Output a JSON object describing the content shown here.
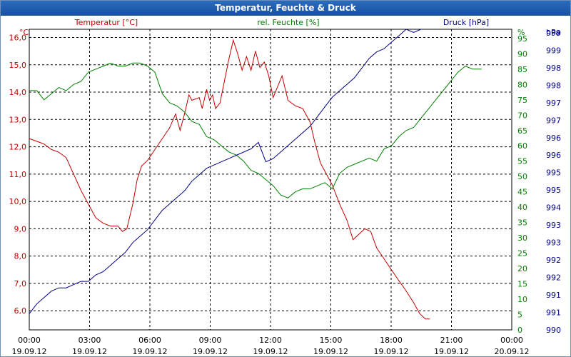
{
  "window": {
    "title": "Temperatur, Feuchte & Druck"
  },
  "chart_data": {
    "type": "line",
    "title": "Temperatur, Feuchte & Druck",
    "grid": true,
    "x": {
      "start": "19.09.12 00:00",
      "end": "20.09.12 00:00",
      "tick_labels": [
        {
          "time": "00:00",
          "date": "19.09.12"
        },
        {
          "time": "03:00",
          "date": "19.09.12"
        },
        {
          "time": "06:00",
          "date": "19.09.12"
        },
        {
          "time": "09:00",
          "date": "19.09.12"
        },
        {
          "time": "12:00",
          "date": "19.09.12"
        },
        {
          "time": "15:00",
          "date": "19.09.12"
        },
        {
          "time": "18:00",
          "date": "19.09.12"
        },
        {
          "time": "21:00",
          "date": "19.09.12"
        },
        {
          "time": "00:00",
          "date": "20.09.12"
        }
      ]
    },
    "axes": {
      "temperature": {
        "label": "Temperatur [°C]",
        "unit": "°C",
        "color": "#c00000",
        "side": "left",
        "range": [
          5.3,
          16.3
        ],
        "ticks": [
          "6,0",
          "7,0",
          "8,0",
          "9,0",
          "10,0",
          "11,0",
          "12,0",
          "13,0",
          "14,0",
          "15,0",
          "16,0"
        ]
      },
      "humidity": {
        "label": "rel. Feuchte [%]",
        "unit": "%",
        "color": "#008000",
        "side": "right",
        "range": [
          0,
          98
        ],
        "ticks": [
          "0",
          "5",
          "10",
          "15",
          "20",
          "25",
          "30",
          "35",
          "40",
          "45",
          "50",
          "55",
          "60",
          "65",
          "70",
          "75",
          "80",
          "85",
          "90",
          "95"
        ]
      },
      "pressure": {
        "label": "Druck [hPa]",
        "unit": "hPa",
        "color": "#00008b",
        "side": "right",
        "range": [
          990,
          999.3
        ],
        "ticks": [
          "990",
          "991",
          "991",
          "992",
          "992",
          "993",
          "993",
          "994",
          "995",
          "995",
          "996",
          "996",
          "997",
          "997",
          "998",
          "998",
          "999",
          "999"
        ]
      }
    },
    "series": [
      {
        "name": "Temperatur [°C]",
        "axis": "temperature",
        "color": "#c00000",
        "points": [
          [
            0,
            12.3
          ],
          [
            0.5,
            12.2
          ],
          [
            1,
            12.1
          ],
          [
            1.5,
            11.9
          ],
          [
            2,
            11.8
          ],
          [
            2.5,
            11.6
          ],
          [
            3,
            11.0
          ],
          [
            3.5,
            10.4
          ],
          [
            4,
            9.9
          ],
          [
            4.5,
            9.4
          ],
          [
            5,
            9.2
          ],
          [
            5.5,
            9.1
          ],
          [
            6,
            9.1
          ],
          [
            6.3,
            8.9
          ],
          [
            6.6,
            9.0
          ],
          [
            7,
            9.9
          ],
          [
            7.3,
            10.8
          ],
          [
            7.6,
            11.3
          ],
          [
            8,
            11.5
          ],
          [
            8.5,
            11.9
          ],
          [
            9,
            12.3
          ],
          [
            9.5,
            12.7
          ],
          [
            9.9,
            13.2
          ],
          [
            10.2,
            12.6
          ],
          [
            10.5,
            13.2
          ],
          [
            10.8,
            13.9
          ],
          [
            11,
            13.7
          ],
          [
            11.5,
            13.8
          ],
          [
            11.7,
            13.4
          ],
          [
            12,
            14.1
          ],
          [
            12.2,
            13.7
          ],
          [
            12.4,
            13.9
          ],
          [
            12.6,
            13.4
          ],
          [
            12.9,
            13.6
          ],
          [
            13.2,
            14.4
          ],
          [
            13.5,
            15.2
          ],
          [
            13.8,
            15.9
          ],
          [
            14.1,
            15.4
          ],
          [
            14.4,
            14.8
          ],
          [
            14.7,
            15.3
          ],
          [
            15,
            14.8
          ],
          [
            15.3,
            15.5
          ],
          [
            15.6,
            14.9
          ],
          [
            15.9,
            15.1
          ],
          [
            16.2,
            14.6
          ],
          [
            16.5,
            13.8
          ],
          [
            16.8,
            14.2
          ],
          [
            17.1,
            14.6
          ],
          [
            17.5,
            13.7
          ],
          [
            18,
            13.5
          ],
          [
            18.5,
            13.4
          ],
          [
            19,
            12.9
          ],
          [
            19.3,
            12.2
          ],
          [
            19.7,
            11.4
          ],
          [
            20.1,
            11.0
          ],
          [
            20.5,
            10.6
          ],
          [
            21,
            9.9
          ],
          [
            21.5,
            9.3
          ],
          [
            21.9,
            8.6
          ],
          [
            22.3,
            8.8
          ],
          [
            22.7,
            9.0
          ],
          [
            23.1,
            8.9
          ],
          [
            23.5,
            8.3
          ],
          [
            24,
            7.9
          ],
          [
            24.5,
            7.5
          ],
          [
            25,
            7.1
          ],
          [
            25.4,
            6.8
          ],
          [
            26,
            6.3
          ],
          [
            26.4,
            5.9
          ],
          [
            26.8,
            5.7
          ],
          [
            27.1,
            5.7
          ]
        ]
      },
      {
        "name": "rel. Feuchte [%]",
        "axis": "humidity",
        "color": "#008000",
        "points": [
          [
            0,
            78
          ],
          [
            0.5,
            78
          ],
          [
            1,
            75
          ],
          [
            1.5,
            77
          ],
          [
            2,
            79
          ],
          [
            2.5,
            78
          ],
          [
            3,
            80
          ],
          [
            3.5,
            81
          ],
          [
            4,
            84
          ],
          [
            4.5,
            85
          ],
          [
            5,
            86
          ],
          [
            5.5,
            87
          ],
          [
            6,
            86
          ],
          [
            6.5,
            86
          ],
          [
            7,
            87
          ],
          [
            7.5,
            87
          ],
          [
            8,
            86
          ],
          [
            8.5,
            84
          ],
          [
            9,
            77
          ],
          [
            9.5,
            74
          ],
          [
            10,
            73
          ],
          [
            10.5,
            71
          ],
          [
            11,
            68
          ],
          [
            11.5,
            67
          ],
          [
            12,
            63
          ],
          [
            12.5,
            62
          ],
          [
            13,
            60
          ],
          [
            13.5,
            58
          ],
          [
            14,
            57
          ],
          [
            14.5,
            55
          ],
          [
            15,
            52
          ],
          [
            15.5,
            51
          ],
          [
            16,
            49
          ],
          [
            16.5,
            47
          ],
          [
            17,
            44
          ],
          [
            17.5,
            43
          ],
          [
            18,
            45
          ],
          [
            18.5,
            46
          ],
          [
            19,
            46
          ],
          [
            19.5,
            47
          ],
          [
            20,
            48
          ],
          [
            20.5,
            46
          ],
          [
            21,
            51
          ],
          [
            21.5,
            53
          ],
          [
            22,
            54
          ],
          [
            22.5,
            55
          ],
          [
            23,
            56
          ],
          [
            23.5,
            55
          ],
          [
            24,
            59
          ],
          [
            24.5,
            60
          ],
          [
            25,
            63
          ],
          [
            25.5,
            65
          ],
          [
            26,
            66
          ],
          [
            26.5,
            69
          ],
          [
            27,
            72
          ],
          [
            27.5,
            75
          ],
          [
            28,
            78
          ],
          [
            28.5,
            81
          ],
          [
            29,
            84
          ],
          [
            29.5,
            86
          ],
          [
            30,
            85
          ],
          [
            30.6,
            85
          ]
        ]
      },
      {
        "name": "Druck [hPa]",
        "axis": "pressure",
        "color": "#00008b",
        "points": [
          [
            0,
            990.5
          ],
          [
            0.5,
            990.8
          ],
          [
            1,
            991.0
          ],
          [
            1.5,
            991.2
          ],
          [
            2,
            991.3
          ],
          [
            2.5,
            991.3
          ],
          [
            3,
            991.4
          ],
          [
            3.5,
            991.5
          ],
          [
            4,
            991.5
          ],
          [
            4.5,
            991.7
          ],
          [
            5,
            991.8
          ],
          [
            5.5,
            992.0
          ],
          [
            6,
            992.2
          ],
          [
            6.5,
            992.4
          ],
          [
            7,
            992.7
          ],
          [
            7.5,
            992.9
          ],
          [
            8,
            993.1
          ],
          [
            8.5,
            993.4
          ],
          [
            9,
            993.7
          ],
          [
            9.5,
            993.9
          ],
          [
            10,
            994.1
          ],
          [
            10.5,
            994.3
          ],
          [
            11,
            994.6
          ],
          [
            11.5,
            994.8
          ],
          [
            12,
            995.0
          ],
          [
            12.5,
            995.1
          ],
          [
            13,
            995.2
          ],
          [
            13.5,
            995.3
          ],
          [
            14,
            995.4
          ],
          [
            14.5,
            995.5
          ],
          [
            15,
            995.6
          ],
          [
            15.5,
            995.8
          ],
          [
            16,
            995.2
          ],
          [
            16.5,
            995.3
          ],
          [
            17,
            995.5
          ],
          [
            17.5,
            995.7
          ],
          [
            18,
            995.9
          ],
          [
            18.5,
            996.1
          ],
          [
            19,
            996.3
          ],
          [
            19.5,
            996.6
          ],
          [
            20,
            996.9
          ],
          [
            20.5,
            997.2
          ],
          [
            21,
            997.4
          ],
          [
            21.5,
            997.6
          ],
          [
            22,
            997.8
          ],
          [
            22.5,
            998.1
          ],
          [
            23,
            998.4
          ],
          [
            23.5,
            998.6
          ],
          [
            24,
            998.7
          ],
          [
            24.5,
            998.9
          ],
          [
            25,
            999.1
          ],
          [
            25.5,
            999.3
          ],
          [
            26,
            999.2
          ],
          [
            26.5,
            999.3
          ]
        ]
      }
    ]
  }
}
